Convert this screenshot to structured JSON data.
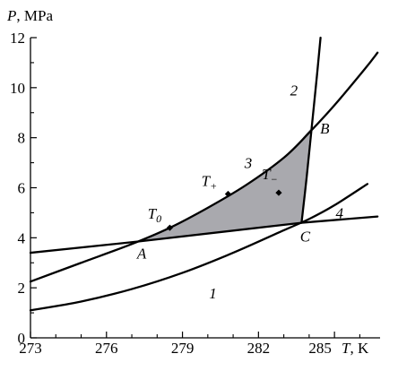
{
  "chart_data": {
    "type": "line",
    "title": "",
    "xlabel": "T, K",
    "ylabel": "P, MPa",
    "xlim": [
      273,
      286.8
    ],
    "ylim": [
      0,
      12
    ],
    "grid": false,
    "x_ticks": [
      273,
      276,
      279,
      282,
      285
    ],
    "y_ticks": [
      0,
      2,
      4,
      6,
      8,
      10,
      12
    ],
    "x_tick_labels": [
      "273",
      "276",
      "279",
      "282",
      "285"
    ],
    "y_tick_labels": [
      "0",
      "2",
      "4",
      "6",
      "8",
      "10",
      "12"
    ],
    "x_title_main": "T",
    "x_title_unit": ", K",
    "y_title_main": "P",
    "y_title_unit": ", MPa",
    "series": [
      {
        "name": "1",
        "color": "#000000",
        "points": [
          [
            273,
            1.1
          ],
          [
            275,
            1.45
          ],
          [
            277,
            1.95
          ],
          [
            279,
            2.6
          ],
          [
            281,
            3.4
          ],
          [
            283,
            4.3
          ],
          [
            284,
            4.75
          ],
          [
            285,
            5.3
          ],
          [
            286.3,
            6.15
          ]
        ]
      },
      {
        "name": "2",
        "color": "#000000",
        "points": [
          [
            283.7,
            4.6
          ],
          [
            283.9,
            6.4
          ],
          [
            284.1,
            8.4
          ],
          [
            284.3,
            10.4
          ],
          [
            284.45,
            12.0
          ]
        ]
      },
      {
        "name": "3",
        "color": "#000000",
        "points": [
          [
            273,
            2.25
          ],
          [
            275,
            3.0
          ],
          [
            277,
            3.75
          ],
          [
            278.5,
            4.4
          ],
          [
            280,
            5.2
          ],
          [
            281.5,
            6.1
          ],
          [
            283,
            7.2
          ],
          [
            284,
            8.2
          ],
          [
            285,
            9.3
          ],
          [
            286.2,
            10.75
          ],
          [
            286.7,
            11.4
          ]
        ]
      },
      {
        "name": "4",
        "color": "#000000",
        "points": [
          [
            273,
            3.4
          ],
          [
            277.25,
            3.85
          ],
          [
            283.7,
            4.6
          ],
          [
            286.7,
            4.85
          ]
        ]
      }
    ],
    "region": {
      "color": "#a9a9ae",
      "outline": [
        [
          277.25,
          3.85
        ],
        [
          278.5,
          4.4
        ],
        [
          280,
          5.2
        ],
        [
          281.5,
          6.1
        ],
        [
          283,
          7.2
        ],
        [
          284.05,
          8.35
        ],
        [
          283.7,
          4.6
        ]
      ]
    },
    "markers": [
      {
        "label": "T0",
        "label_main": "T",
        "label_sub": "0",
        "x": 278.5,
        "y": 4.4
      },
      {
        "label": "T+",
        "label_main": "T",
        "label_sub": "+",
        "x": 280.8,
        "y": 5.75
      },
      {
        "label": "T−",
        "label_main": "T",
        "label_sub": "−",
        "x": 282.8,
        "y": 5.8
      }
    ],
    "point_labels": [
      {
        "label": "A",
        "x": 277.25,
        "y": 3.85
      },
      {
        "label": "B",
        "x": 284.05,
        "y": 8.35
      },
      {
        "label": "C",
        "x": 283.7,
        "y": 4.6
      }
    ],
    "curve_labels": [
      {
        "label": "1",
        "x": 280.2,
        "y": 1.8
      },
      {
        "label": "2",
        "x": 283.4,
        "y": 9.9
      },
      {
        "label": "3",
        "x": 281.6,
        "y": 7.0
      },
      {
        "label": "4",
        "x": 285.2,
        "y": 5.0
      }
    ]
  }
}
